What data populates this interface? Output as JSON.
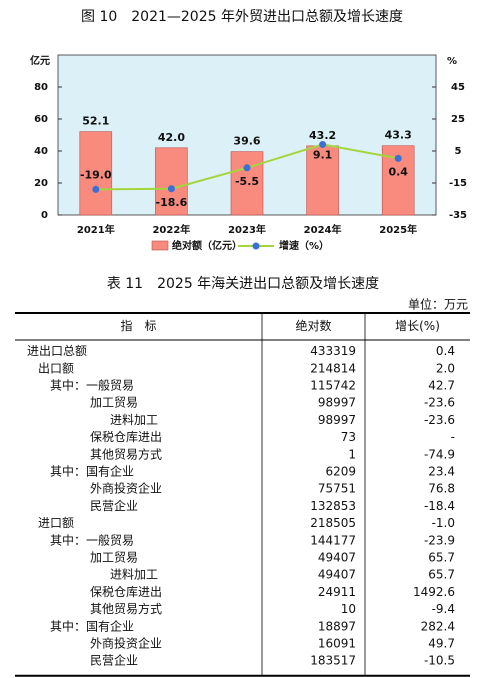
{
  "chart_data": {
    "type": "bar",
    "title": "图 10　2021—2025 年外贸进出口总额及增长速度",
    "categories": [
      "2021年",
      "2022年",
      "2023年",
      "2024年",
      "2025年"
    ],
    "ylabel": "亿元",
    "y2label": "%",
    "ylim": [
      0,
      100
    ],
    "yticks": [
      0,
      20,
      40,
      60,
      80
    ],
    "y2lim": [
      -35,
      65
    ],
    "y2ticks": [
      -35,
      -15,
      5,
      25,
      45
    ],
    "background": "#dcf0f7",
    "series": [
      {
        "name": "绝对额（亿元）",
        "type": "bar",
        "color": "#f98a7e",
        "values": [
          52.1,
          42.0,
          39.6,
          43.2,
          43.3
        ],
        "value_labels": [
          "52.1",
          "42.0",
          "39.6",
          "43.2",
          "43.3"
        ]
      },
      {
        "name": "增速（%）",
        "type": "line",
        "axis": "y2",
        "color": "#a3d63c",
        "marker_color": "#3a6fd8",
        "values": [
          -19.0,
          -18.6,
          -5.5,
          9.1,
          0.4
        ],
        "value_labels": [
          "-19.0",
          "-18.6",
          "-5.5",
          "9.1",
          "0.4"
        ]
      }
    ]
  },
  "table": {
    "title": "表 11　2025 年海关进出口总额及增长速度",
    "unit": "单位：万元",
    "header": [
      "指　标",
      "绝对数",
      "增长(%)"
    ],
    "rows": [
      [
        "进出口总额",
        "433319",
        "0.4"
      ],
      [
        "出口额",
        "214814",
        "2.0"
      ],
      [
        "其中：一般贸易",
        "115742",
        "42.7"
      ],
      [
        "加工贸易",
        "98997",
        "-23.6"
      ],
      [
        "进料加工",
        "98997",
        "-23.6"
      ],
      [
        "保税仓库进出",
        "73",
        "-"
      ],
      [
        "其他贸易方式",
        "1",
        "-74.9"
      ],
      [
        "其中：国有企业",
        "6209",
        "23.4"
      ],
      [
        "外商投资企业",
        "75751",
        "76.8"
      ],
      [
        "民营企业",
        "132853",
        "-18.4"
      ],
      [
        "进口额",
        "218505",
        "-1.0"
      ],
      [
        "其中：一般贸易",
        "144177",
        "-23.9"
      ],
      [
        "加工贸易",
        "49407",
        "65.7"
      ],
      [
        "进料加工",
        "49407",
        "65.7"
      ],
      [
        "保税仓库进出",
        "24911",
        "1492.6"
      ],
      [
        "其他贸易方式",
        "10",
        "-9.4"
      ],
      [
        "其中：国有企业",
        "18897",
        "282.4"
      ],
      [
        "外商投资企业",
        "16091",
        "49.7"
      ],
      [
        "民营企业",
        "183517",
        "-10.5"
      ]
    ]
  }
}
